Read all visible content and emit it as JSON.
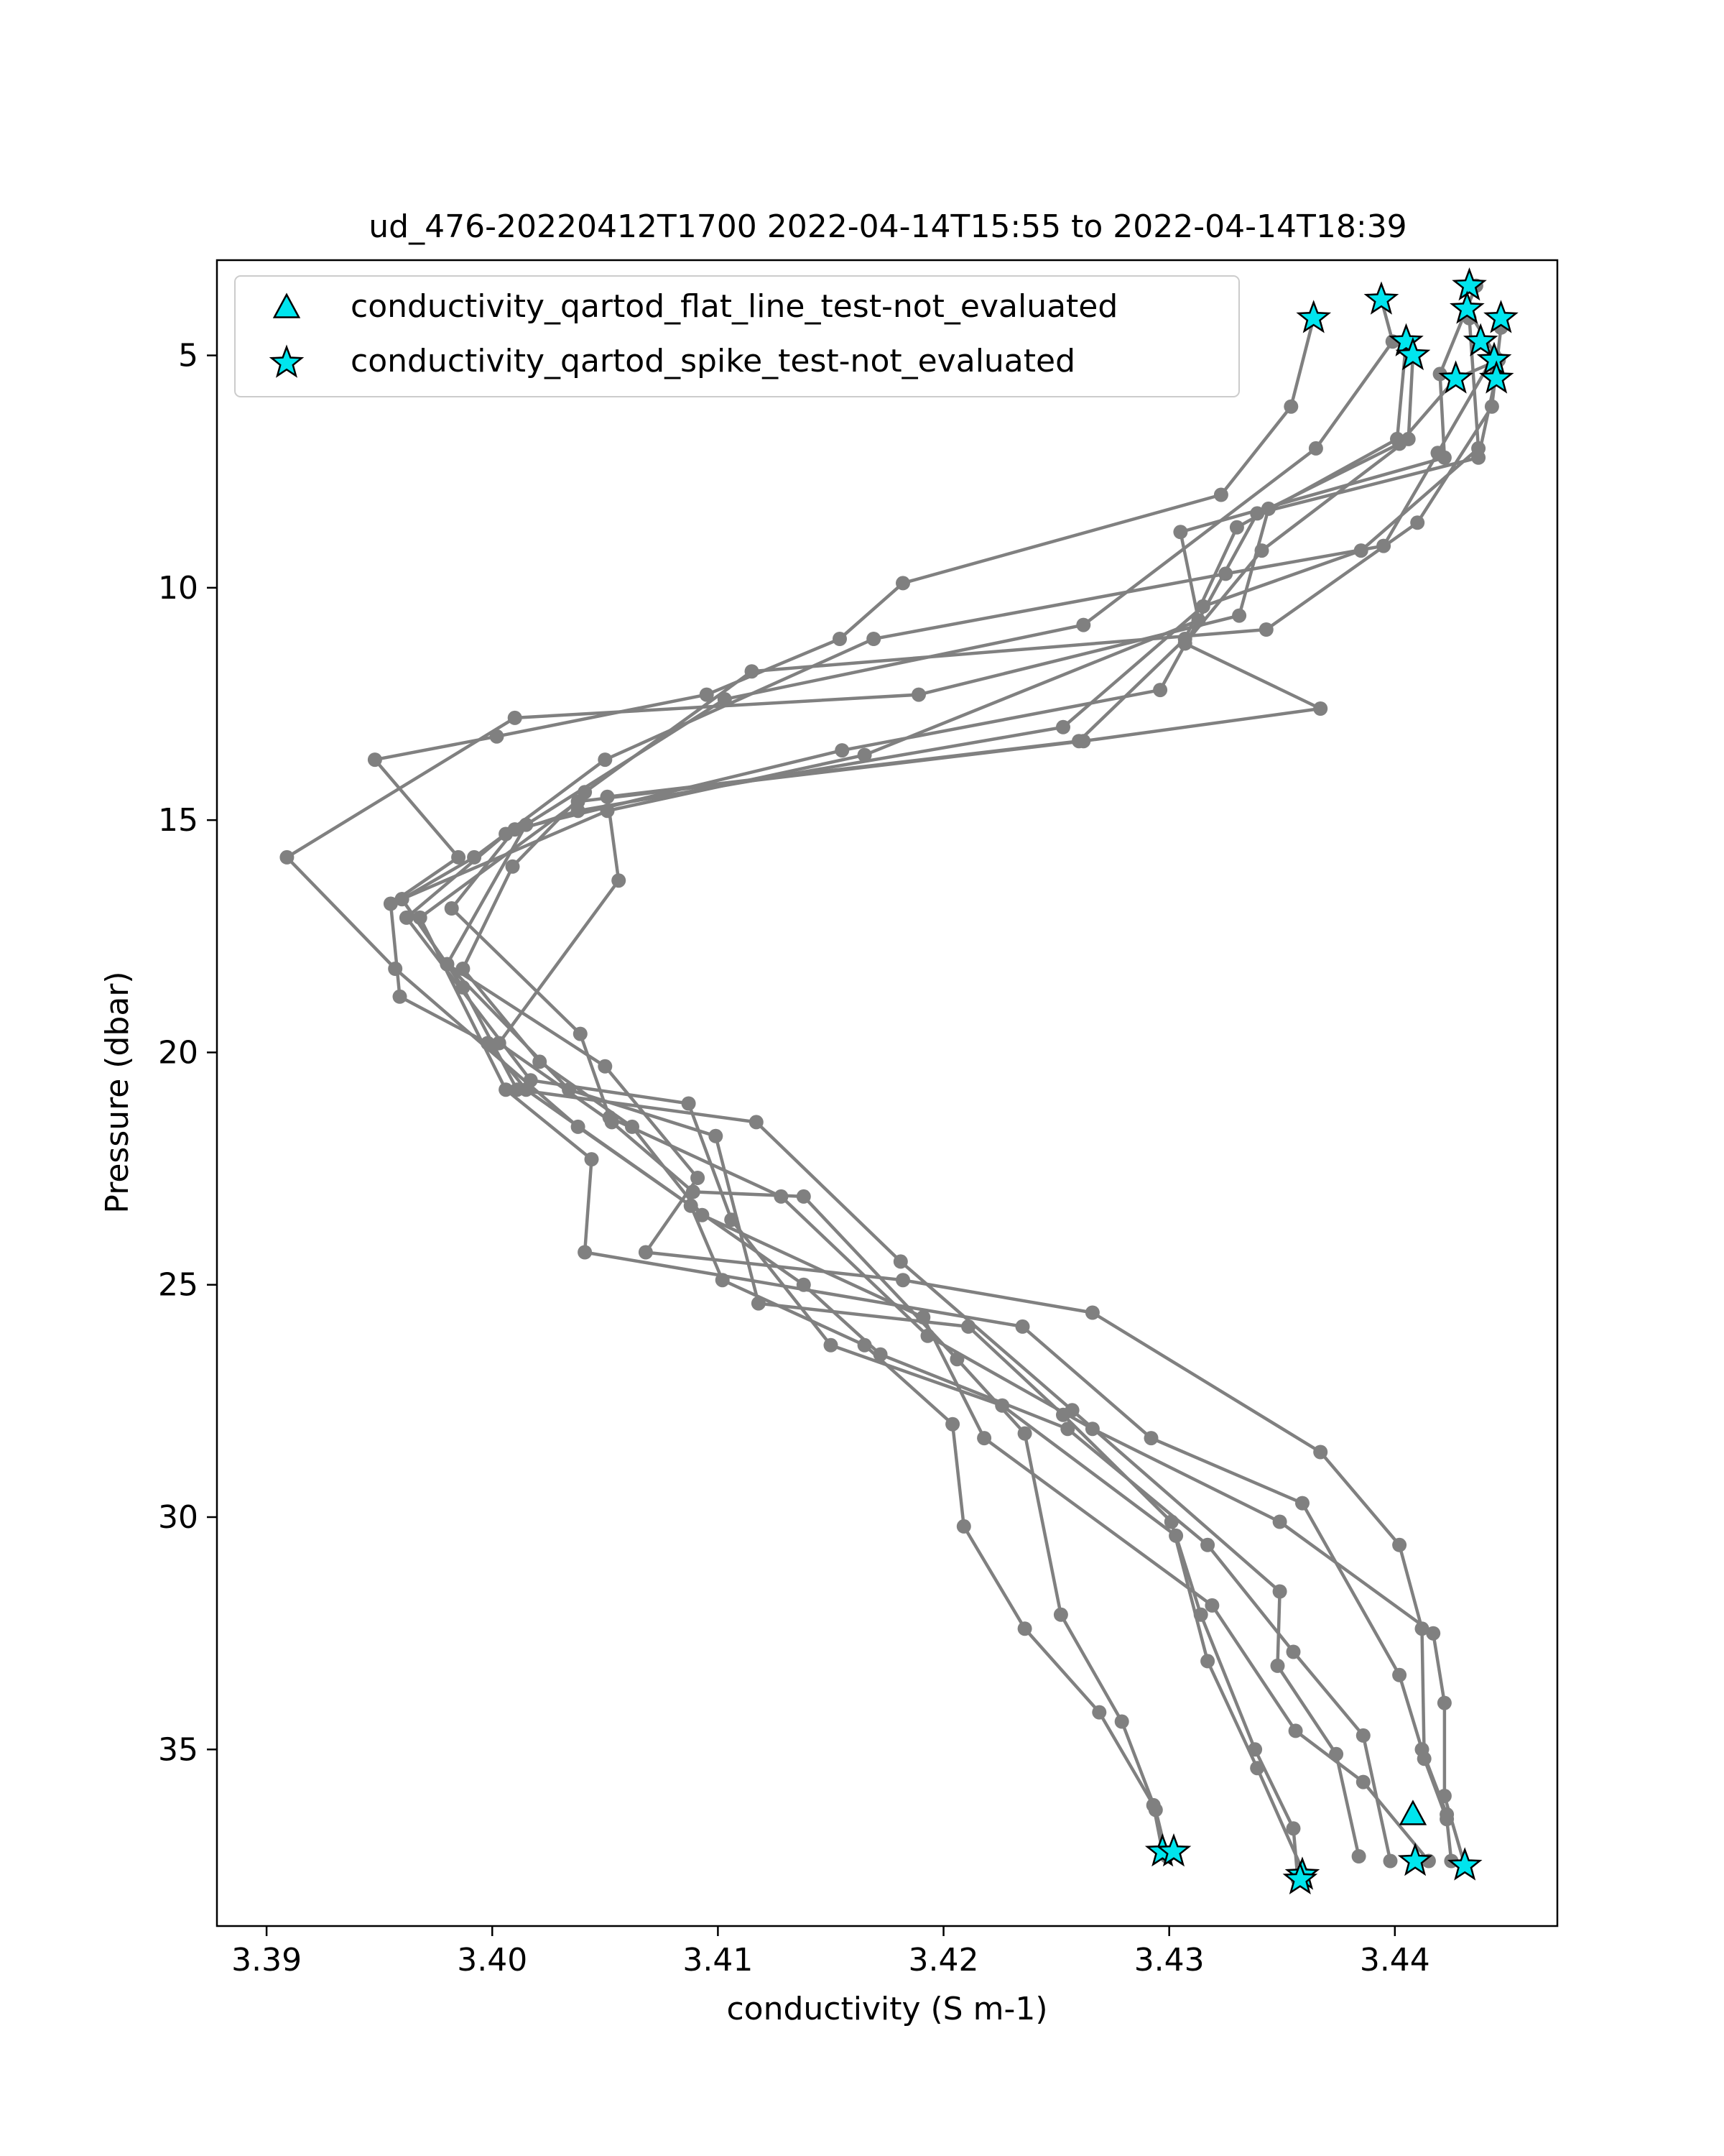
{
  "chart_data": {
    "type": "scatter",
    "title": "ud_476-20220412T1700 2022-04-14T15:55 to 2022-04-14T18:39",
    "xlabel": "conductivity (S m-1)",
    "ylabel": "Pressure (dbar)",
    "xlim": [
      3.3878,
      3.4472
    ],
    "ylim": [
      38.8,
      2.95
    ],
    "y_inverted": true,
    "grid": false,
    "legend_position": "top-left",
    "xticks": [
      {
        "value": 3.39,
        "label": "3.39"
      },
      {
        "value": 3.4,
        "label": "3.40"
      },
      {
        "value": 3.41,
        "label": "3.41"
      },
      {
        "value": 3.42,
        "label": "3.42"
      },
      {
        "value": 3.43,
        "label": "3.43"
      },
      {
        "value": 3.44,
        "label": "3.44"
      }
    ],
    "yticks": [
      {
        "value": 5,
        "label": "5"
      },
      {
        "value": 10,
        "label": "10"
      },
      {
        "value": 15,
        "label": "15"
      },
      {
        "value": 20,
        "label": "20"
      },
      {
        "value": 25,
        "label": "25"
      },
      {
        "value": 30,
        "label": "30"
      },
      {
        "value": 35,
        "label": "35"
      }
    ],
    "colors": {
      "profile_line": "#808080",
      "flag_fill": "#00e5ee",
      "flag_edge": "#000000"
    },
    "legend": [
      {
        "label": "conductivity_qartod_flat_line_test-not_evaluated",
        "marker": "triangle"
      },
      {
        "label": "conductivity_qartod_spike_test-not_evaluated",
        "marker": "star"
      }
    ],
    "profiles": [
      {
        "points": [
          [
            3.4364,
            4.2
          ],
          [
            3.4354,
            6.1
          ],
          [
            3.4323,
            8.0
          ],
          [
            3.4182,
            9.9
          ],
          [
            3.4154,
            11.1
          ],
          [
            3.4095,
            12.3
          ],
          [
            3.4002,
            13.2
          ],
          [
            3.3948,
            13.7
          ],
          [
            3.3985,
            15.8
          ],
          [
            3.3955,
            16.8
          ],
          [
            3.3959,
            18.8
          ],
          [
            3.3998,
            19.8
          ],
          [
            3.4015,
            20.8
          ],
          [
            3.4088,
            23.3
          ],
          [
            3.4102,
            24.9
          ],
          [
            3.4165,
            26.3
          ],
          [
            3.4204,
            28.0
          ],
          [
            3.4209,
            30.2
          ],
          [
            3.4236,
            32.4
          ],
          [
            3.4269,
            34.2
          ],
          [
            3.4293,
            36.2
          ],
          [
            3.4297,
            37.2
          ]
        ]
      },
      {
        "points": [
          [
            3.4394,
            3.8
          ],
          [
            3.4399,
            4.7
          ],
          [
            3.4365,
            7.0
          ],
          [
            3.4262,
            10.8
          ],
          [
            3.4103,
            12.4
          ],
          [
            3.4015,
            15.1
          ],
          [
            3.398,
            18.1
          ],
          [
            3.405,
            20.3
          ],
          [
            3.4091,
            22.7
          ],
          [
            3.4068,
            24.3
          ],
          [
            3.4182,
            24.9
          ],
          [
            3.4266,
            25.6
          ],
          [
            3.4367,
            28.6
          ],
          [
            3.4402,
            30.6
          ],
          [
            3.4412,
            32.4
          ],
          [
            3.4413,
            35.2
          ],
          [
            3.4423,
            36.5
          ],
          [
            3.4425,
            37.4
          ]
        ]
      },
      {
        "points": [
          [
            3.4405,
            4.7
          ],
          [
            3.4401,
            6.8
          ],
          [
            3.433,
            8.7
          ],
          [
            3.4307,
            11.1
          ],
          [
            3.426,
            13.3
          ],
          [
            3.4051,
            14.5
          ],
          [
            3.4056,
            16.3
          ],
          [
            3.4003,
            19.8
          ],
          [
            3.4053,
            21.5
          ],
          [
            3.4089,
            23.0
          ],
          [
            3.4138,
            23.1
          ],
          [
            3.4206,
            26.6
          ],
          [
            3.4236,
            28.2
          ],
          [
            3.4252,
            32.1
          ],
          [
            3.4279,
            34.4
          ],
          [
            3.4294,
            36.3
          ],
          [
            3.4299,
            37.3
          ]
        ]
      },
      {
        "points": [
          [
            3.4408,
            5.0
          ],
          [
            3.4406,
            6.8
          ],
          [
            3.4341,
            9.2
          ],
          [
            3.4307,
            11.2
          ],
          [
            3.4367,
            12.6
          ],
          [
            3.4262,
            13.3
          ],
          [
            3.4038,
            14.6
          ],
          [
            3.3968,
            17.1
          ],
          [
            3.4006,
            20.8
          ],
          [
            3.4044,
            22.3
          ],
          [
            3.4041,
            24.3
          ],
          [
            3.4235,
            25.9
          ],
          [
            3.4292,
            28.3
          ],
          [
            3.4359,
            29.7
          ],
          [
            3.4402,
            33.4
          ],
          [
            3.4412,
            35.0
          ],
          [
            3.4423,
            36.4
          ]
        ]
      },
      {
        "points": [
          [
            3.4436,
            3.5
          ],
          [
            3.442,
            5.4
          ],
          [
            3.4422,
            7.2
          ],
          [
            3.4305,
            8.8
          ],
          [
            3.4313,
            10.7
          ],
          [
            3.4165,
            13.6
          ],
          [
            3.4051,
            14.8
          ],
          [
            3.396,
            16.7
          ],
          [
            3.398,
            18.1
          ],
          [
            3.4034,
            20.8
          ],
          [
            3.4099,
            21.8
          ],
          [
            3.4118,
            25.4
          ],
          [
            3.4211,
            25.9
          ],
          [
            3.4253,
            27.8
          ],
          [
            3.4301,
            30.1
          ],
          [
            3.4317,
            33.1
          ],
          [
            3.4339,
            35.4
          ],
          [
            3.436,
            37.7
          ]
        ]
      },
      {
        "points": [
          [
            3.4433,
            4.2
          ],
          [
            3.4437,
            7.0
          ],
          [
            3.4385,
            9.2
          ],
          [
            3.4315,
            10.4
          ],
          [
            3.4253,
            13.0
          ],
          [
            3.4038,
            14.8
          ],
          [
            3.4006,
            15.3
          ],
          [
            3.3962,
            17.1
          ],
          [
            3.4017,
            20.6
          ],
          [
            3.4087,
            21.1
          ],
          [
            3.4106,
            23.6
          ],
          [
            3.415,
            26.3
          ],
          [
            3.4226,
            27.6
          ],
          [
            3.4303,
            30.4
          ],
          [
            3.4314,
            32.1
          ],
          [
            3.4338,
            35.0
          ],
          [
            3.4355,
            36.7
          ],
          [
            3.4357,
            37.8
          ]
        ]
      },
      {
        "points": [
          [
            3.4447,
            4.4
          ],
          [
            3.4443,
            6.1
          ],
          [
            3.441,
            8.6
          ],
          [
            3.4343,
            10.9
          ],
          [
            3.4115,
            11.8
          ],
          [
            3.4041,
            14.4
          ],
          [
            3.4009,
            16.0
          ],
          [
            3.3987,
            18.2
          ],
          [
            3.4021,
            20.2
          ],
          [
            3.4062,
            21.6
          ],
          [
            3.4093,
            23.5
          ],
          [
            3.4191,
            25.7
          ],
          [
            3.4218,
            28.3
          ],
          [
            3.4319,
            31.9
          ],
          [
            3.4356,
            34.6
          ],
          [
            3.4386,
            35.7
          ],
          [
            3.4415,
            37.4
          ]
        ]
      },
      {
        "points": [
          [
            3.4444,
            5.0
          ],
          [
            3.4419,
            7.1
          ],
          [
            3.4395,
            9.1
          ],
          [
            3.4325,
            9.7
          ],
          [
            3.4169,
            11.1
          ],
          [
            3.405,
            13.7
          ],
          [
            3.3992,
            15.8
          ],
          [
            3.396,
            16.7
          ],
          [
            3.3987,
            18.6
          ],
          [
            3.4011,
            20.8
          ],
          [
            3.4117,
            21.5
          ],
          [
            3.4181,
            24.5
          ],
          [
            3.4257,
            27.7
          ],
          [
            3.4349,
            31.6
          ],
          [
            3.4348,
            33.2
          ],
          [
            3.4374,
            35.1
          ],
          [
            3.4384,
            37.3
          ]
        ]
      },
      {
        "points": [
          [
            3.4432,
            4.0
          ],
          [
            3.4446,
            5.1
          ],
          [
            3.4427,
            5.5
          ],
          [
            3.4402,
            6.9
          ],
          [
            3.4344,
            8.3
          ],
          [
            3.4331,
            10.6
          ],
          [
            3.4189,
            12.3
          ],
          [
            3.401,
            12.8
          ],
          [
            3.3909,
            15.8
          ],
          [
            3.3957,
            18.2
          ],
          [
            3.4038,
            21.6
          ],
          [
            3.4138,
            25.0
          ],
          [
            3.4172,
            26.5
          ],
          [
            3.4255,
            28.1
          ],
          [
            3.4317,
            30.6
          ],
          [
            3.4355,
            32.9
          ],
          [
            3.4386,
            34.7
          ],
          [
            3.4398,
            37.4
          ]
        ]
      },
      {
        "points": [
          [
            3.4445,
            5.4
          ],
          [
            3.4437,
            7.2
          ],
          [
            3.4339,
            8.4
          ],
          [
            3.4296,
            12.2
          ],
          [
            3.4155,
            13.5
          ],
          [
            3.401,
            15.2
          ],
          [
            3.3982,
            16.9
          ],
          [
            3.4039,
            19.6
          ],
          [
            3.4052,
            21.4
          ],
          [
            3.4128,
            23.1
          ],
          [
            3.4193,
            26.1
          ],
          [
            3.4266,
            28.1
          ],
          [
            3.4349,
            30.1
          ],
          [
            3.4417,
            32.5
          ],
          [
            3.4422,
            34.0
          ],
          [
            3.4422,
            36.0
          ],
          [
            3.4431,
            37.5
          ]
        ]
      }
    ],
    "flat_line_test_not_evaluated": [
      [
        3.4408,
        36.4
      ]
    ],
    "spike_test_not_evaluated": [
      [
        3.4364,
        4.2
      ],
      [
        3.4394,
        3.8
      ],
      [
        3.4405,
        4.7
      ],
      [
        3.4408,
        5.0
      ],
      [
        3.4433,
        3.5
      ],
      [
        3.4432,
        4.0
      ],
      [
        3.4447,
        4.2
      ],
      [
        3.4438,
        4.7
      ],
      [
        3.4444,
        5.1
      ],
      [
        3.4427,
        5.5
      ],
      [
        3.4445,
        5.5
      ],
      [
        3.4297,
        37.2
      ],
      [
        3.4302,
        37.2
      ],
      [
        3.4359,
        37.7
      ],
      [
        3.4358,
        37.8
      ],
      [
        3.4409,
        37.4
      ],
      [
        3.4431,
        37.5
      ]
    ]
  }
}
